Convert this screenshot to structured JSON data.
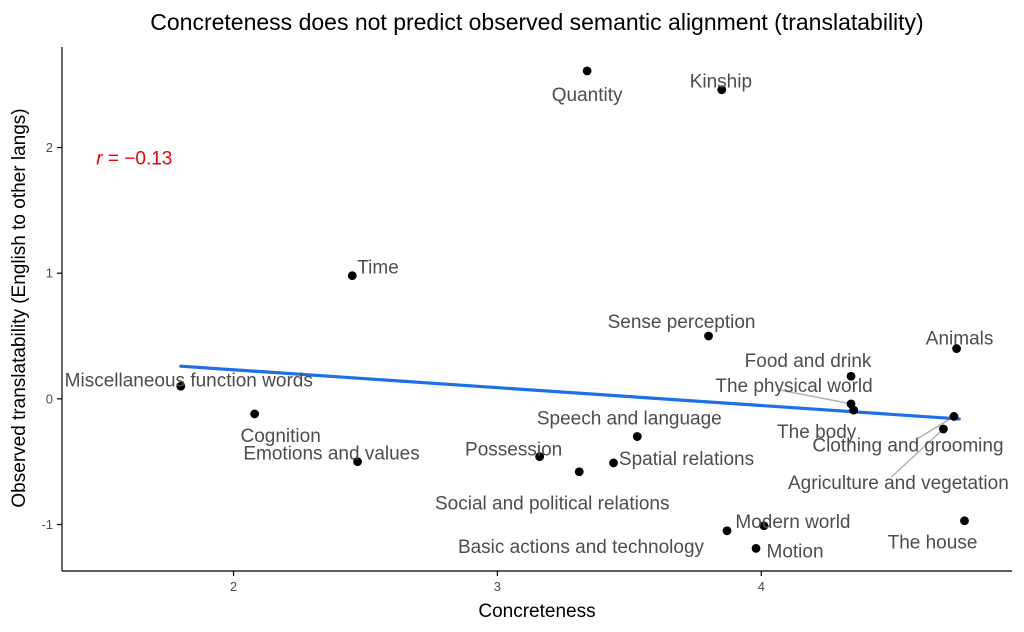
{
  "chart_data": {
    "type": "scatter",
    "title": "Concreteness does not predict observed semantic alignment (translatability)",
    "xlabel": "Concreteness",
    "ylabel": "Observed translatability (English to other langs)",
    "xlim": [
      1.35,
      4.95
    ],
    "ylim": [
      -1.37,
      2.8
    ],
    "x_ticks": [
      2,
      3,
      4
    ],
    "y_ticks": [
      -1,
      0,
      1,
      2
    ],
    "grid": false,
    "annotation": {
      "italic": "r",
      "rest": " = −0.13",
      "color": "#e8000b"
    },
    "trend_line": {
      "x": [
        1.8,
        4.75
      ],
      "y": [
        0.26,
        -0.16
      ],
      "color": "#1f6fe5"
    },
    "points": [
      {
        "label": "Quantity",
        "x": 3.34,
        "y": 2.61
      },
      {
        "label": "Kinship",
        "x": 3.85,
        "y": 2.46
      },
      {
        "label": "Time",
        "x": 2.45,
        "y": 0.98
      },
      {
        "label": "Sense perception",
        "x": 3.8,
        "y": 0.5
      },
      {
        "label": "Animals",
        "x": 4.74,
        "y": 0.4
      },
      {
        "label": "Food and drink",
        "x": 4.34,
        "y": 0.18
      },
      {
        "label": "Miscellaneous function words",
        "x": 1.8,
        "y": 0.1
      },
      {
        "label": "The physical world",
        "x": 4.34,
        "y": -0.04
      },
      {
        "label": "The body",
        "x": 4.35,
        "y": -0.09
      },
      {
        "label": "Cognition",
        "x": 2.08,
        "y": -0.12
      },
      {
        "label": "Clothing and grooming",
        "x": 4.73,
        "y": -0.14
      },
      {
        "label": "Agriculture and vegetation",
        "x": 4.69,
        "y": -0.24
      },
      {
        "label": "Speech and language",
        "x": 3.53,
        "y": -0.3
      },
      {
        "label": "Possession",
        "x": 3.16,
        "y": -0.46
      },
      {
        "label": "Emotions and values",
        "x": 2.47,
        "y": -0.5
      },
      {
        "label": "Spatial relations",
        "x": 3.44,
        "y": -0.51
      },
      {
        "label": "Social and political relations",
        "x": 3.31,
        "y": -0.58
      },
      {
        "label": "The house",
        "x": 4.77,
        "y": -0.97
      },
      {
        "label": "Modern world",
        "x": 4.01,
        "y": -1.01
      },
      {
        "label": "Basic actions and technology",
        "x": 3.87,
        "y": -1.05
      },
      {
        "label": "Motion",
        "x": 3.98,
        "y": -1.19
      }
    ]
  }
}
